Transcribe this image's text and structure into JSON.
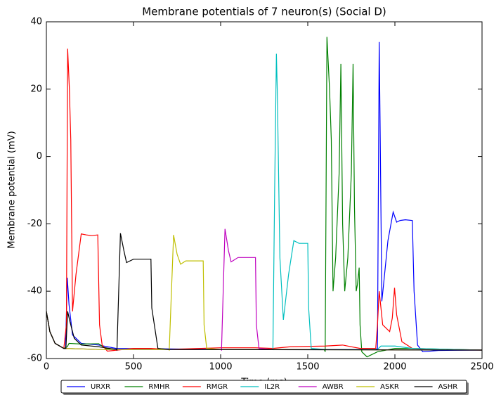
{
  "chart_data": {
    "type": "line",
    "title": "Membrane potentials of 7 neuron(s) (Social D)",
    "xlabel": "Time (ms)",
    "ylabel": "Membrane potential (mV)",
    "xlim": [
      0,
      2500
    ],
    "xticks": [
      0,
      500,
      1000,
      1500,
      2000,
      2500
    ],
    "ylim": [
      -60,
      40
    ],
    "yticks": [
      -60,
      -40,
      -20,
      0,
      20,
      40
    ],
    "legend": "lower center",
    "series": [
      {
        "name": "URXR",
        "color": "#0000ff",
        "x": [
          0,
          20,
          50,
          100,
          110,
          120,
          130,
          150,
          200,
          300,
          400,
          1000,
          1890,
          1900,
          1910,
          1915,
          1925,
          1935,
          1960,
          1990,
          2010,
          2030,
          2060,
          2100,
          2110,
          2130,
          2160,
          2250,
          2500
        ],
        "values": [
          -46,
          -52,
          -55.5,
          -57,
          -57,
          -36,
          -44,
          -53,
          -55.5,
          -56,
          -57,
          -57.3,
          -57.3,
          -57,
          34,
          10,
          -43,
          -38,
          -25,
          -16.5,
          -19.5,
          -19,
          -18.8,
          -19,
          -40,
          -56,
          -58,
          -57.6,
          -57.5
        ]
      },
      {
        "name": "RMHR",
        "color": "#008000",
        "x": [
          0,
          20,
          50,
          100,
          120,
          130,
          200,
          300,
          340,
          400,
          1000,
          1595,
          1600,
          1610,
          1625,
          1635,
          1645,
          1660,
          1680,
          1690,
          1700,
          1712,
          1730,
          1750,
          1760,
          1768,
          1778,
          1785,
          1795,
          1800,
          1810,
          1840,
          1900,
          2000,
          2100,
          2500
        ],
        "values": [
          -46,
          -52,
          -55.5,
          -57,
          -56.5,
          -55.5,
          -55.7,
          -55.6,
          -57,
          -57.3,
          -57.3,
          -57.3,
          -58,
          35.5,
          20,
          5,
          -40,
          -30,
          -5,
          27.5,
          -20,
          -40,
          -30,
          -5,
          27.5,
          -15,
          -40,
          -38,
          -33,
          -50,
          -58,
          -59.5,
          -58,
          -57,
          -57,
          -57.5
        ]
      },
      {
        "name": "RMGR",
        "color": "#ff0000",
        "x": [
          0,
          20,
          50,
          100,
          115,
          122,
          132,
          140,
          150,
          170,
          200,
          230,
          260,
          295,
          305,
          320,
          350,
          500,
          600,
          700,
          1000,
          1200,
          1300,
          1400,
          1600,
          1700,
          1800,
          1890,
          1900,
          1910,
          1930,
          1970,
          1985,
          1998,
          2010,
          2040,
          2100,
          2200,
          2500
        ],
        "values": [
          -46,
          -52,
          -55.5,
          -57,
          -50,
          32,
          20,
          5,
          -46,
          -35,
          -23,
          -23.3,
          -23.5,
          -23.3,
          -50,
          -56,
          -57.8,
          -57,
          -57,
          -57.3,
          -56.8,
          -56.8,
          -57,
          -56.5,
          -56.3,
          -56,
          -57,
          -57,
          -50,
          -40,
          -50,
          -52,
          -48,
          -39,
          -47,
          -55,
          -57,
          -57.3,
          -57.5
        ]
      },
      {
        "name": "IL2R",
        "color": "#00bfbf",
        "x": [
          0,
          20,
          50,
          100,
          300,
          1000,
          1300,
          1310,
          1320,
          1325,
          1340,
          1360,
          1390,
          1420,
          1450,
          1500,
          1505,
          1520,
          1600,
          1900,
          1920,
          2000,
          2100,
          2500
        ],
        "values": [
          -46,
          -52,
          -55.5,
          -57,
          -57.3,
          -57.3,
          -57.3,
          -10,
          30.5,
          20,
          -30,
          -48.5,
          -35,
          -25,
          -25.8,
          -25.8,
          -45,
          -57,
          -57.3,
          -57.3,
          -56.3,
          -56.3,
          -57,
          -57.5
        ]
      },
      {
        "name": "AWBR",
        "color": "#bf00bf",
        "x": [
          0,
          20,
          50,
          100,
          300,
          1000,
          1005,
          1025,
          1045,
          1060,
          1100,
          1200,
          1205,
          1220,
          1300,
          2500
        ],
        "values": [
          -46,
          -52,
          -55.5,
          -57,
          -57.3,
          -57.3,
          -57.5,
          -21.5,
          -28,
          -31.3,
          -30,
          -30,
          -50,
          -57,
          -57.3,
          -57.5
        ]
      },
      {
        "name": "ASKR",
        "color": "#bfbf00",
        "x": [
          0,
          20,
          50,
          100,
          300,
          700,
          705,
          730,
          750,
          770,
          800,
          900,
          905,
          920,
          1000,
          2500
        ],
        "values": [
          -46,
          -52,
          -55.5,
          -57,
          -57.3,
          -57.3,
          -57.5,
          -23.3,
          -29,
          -32,
          -31,
          -31,
          -50,
          -57,
          -57.3,
          -57.5
        ]
      },
      {
        "name": "ASHR",
        "color": "#000000",
        "x": [
          0,
          20,
          50,
          100,
          112,
          122,
          135,
          160,
          200,
          300,
          400,
          405,
          425,
          445,
          460,
          500,
          600,
          605,
          640,
          700,
          2500
        ],
        "values": [
          -46,
          -52,
          -55.5,
          -57,
          -57,
          -46,
          -49,
          -54,
          -56,
          -56.5,
          -57.3,
          -57.5,
          -22.8,
          -28,
          -31.5,
          -30.5,
          -30.5,
          -45,
          -57,
          -57.3,
          -57.5
        ]
      }
    ]
  }
}
